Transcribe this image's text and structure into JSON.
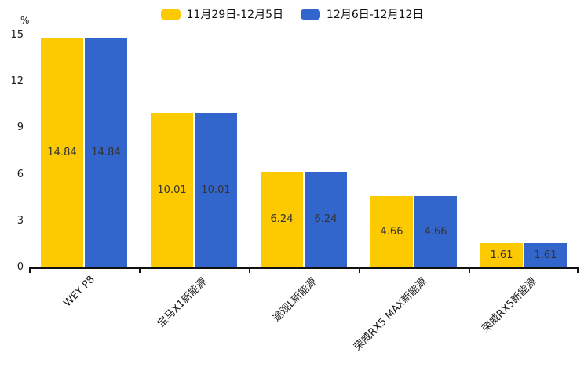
{
  "chart_data": {
    "type": "bar",
    "title": "",
    "ylabel": "%",
    "xlabel": "",
    "categories": [
      "WEY P8",
      "宝马X1新能源",
      "途观L新能源",
      "荣威RX5 MAX新能源",
      "荣威RX5新能源"
    ],
    "series": [
      {
        "name": "11月29日-12月5日",
        "color": "#FDC900",
        "values": [
          14.84,
          10.01,
          6.24,
          4.66,
          1.61
        ]
      },
      {
        "name": "12月6日-12月12日",
        "color": "#3366CC",
        "values": [
          14.84,
          10.01,
          6.24,
          4.66,
          1.61
        ]
      }
    ],
    "y_ticks": [
      0,
      3,
      6,
      9,
      12,
      15
    ],
    "ylim": [
      0,
      15
    ],
    "grid": false,
    "legend_position": "top-center",
    "value_labels_position": "inside-center",
    "value_label_color": "#333333",
    "axis_color": "#111111",
    "tick_label_color": "#1a1a1a",
    "x_label_rotation_deg": -45
  }
}
